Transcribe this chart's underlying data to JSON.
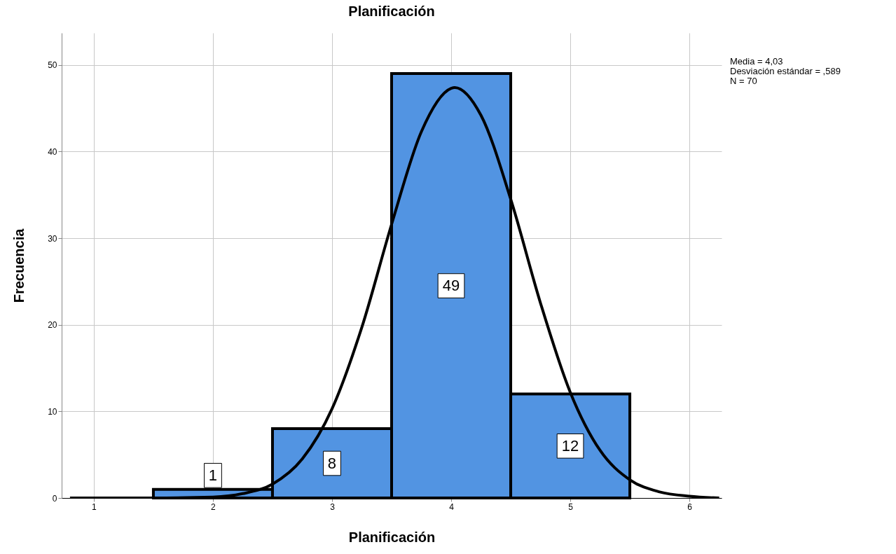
{
  "chart_data": {
    "type": "histogram",
    "title": "Planificación",
    "xlabel": "Planificación",
    "ylabel": "Frecuencia",
    "bins": [
      1.5,
      2.5,
      3.5,
      4.5,
      5.5
    ],
    "values": [
      1,
      8,
      49,
      12
    ],
    "value_labels": [
      "1",
      "8",
      "49",
      "12"
    ],
    "color": "#5294e2",
    "series": [
      {
        "type": "line",
        "color": "#000000",
        "x": [
          0.8,
          1.5,
          2.0,
          2.25,
          2.5,
          2.75,
          3.0,
          3.25,
          3.5,
          3.75,
          4.0,
          4.03,
          4.25,
          4.5,
          4.75,
          5.0,
          5.25,
          5.5,
          5.75,
          6.0,
          6.25
        ],
        "values": [
          0,
          0,
          0.1,
          0.5,
          1.6,
          4.5,
          10.3,
          19.7,
          31.6,
          42.3,
          47.3,
          47.4,
          44.2,
          34.5,
          22.5,
          12.2,
          5.5,
          2.1,
          0.7,
          0.2,
          0
        ]
      }
    ],
    "xlim": [
      0.73,
      6.27
    ],
    "xticks": [
      1,
      2,
      3,
      4,
      5,
      6
    ],
    "ylim": [
      0,
      53.7
    ],
    "yticks": [
      0,
      10,
      20,
      30,
      40,
      50
    ],
    "grid": true,
    "annotations": [
      "Media = 4,03",
      "Desviación estándar = ,589",
      "N = 70"
    ]
  }
}
